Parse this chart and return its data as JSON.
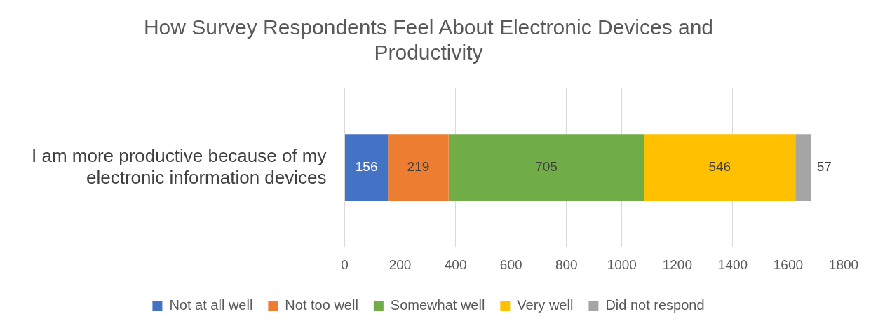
{
  "chart_data": {
    "type": "bar",
    "orientation": "horizontal",
    "stacked": true,
    "title": "How Survey Respondents Feel About Electronic Devices and Productivity",
    "categories": [
      "I am more productive because of my electronic information devices"
    ],
    "series": [
      {
        "name": "Not at all well",
        "color": "#4472c4",
        "values": [
          156
        ]
      },
      {
        "name": "Not too well",
        "color": "#ed7d31",
        "values": [
          219
        ]
      },
      {
        "name": "Somewhat well",
        "color": "#70ad47",
        "values": [
          705
        ]
      },
      {
        "name": "Very well",
        "color": "#ffc000",
        "values": [
          546
        ]
      },
      {
        "name": "Did not respond",
        "color": "#a5a5a5",
        "values": [
          57
        ]
      }
    ],
    "xlim": [
      0,
      1800
    ],
    "xticks": [
      0,
      200,
      400,
      600,
      800,
      1000,
      1200,
      1400,
      1600,
      1800
    ],
    "grid": "x",
    "legend": "bottom",
    "data_labels": true
  }
}
